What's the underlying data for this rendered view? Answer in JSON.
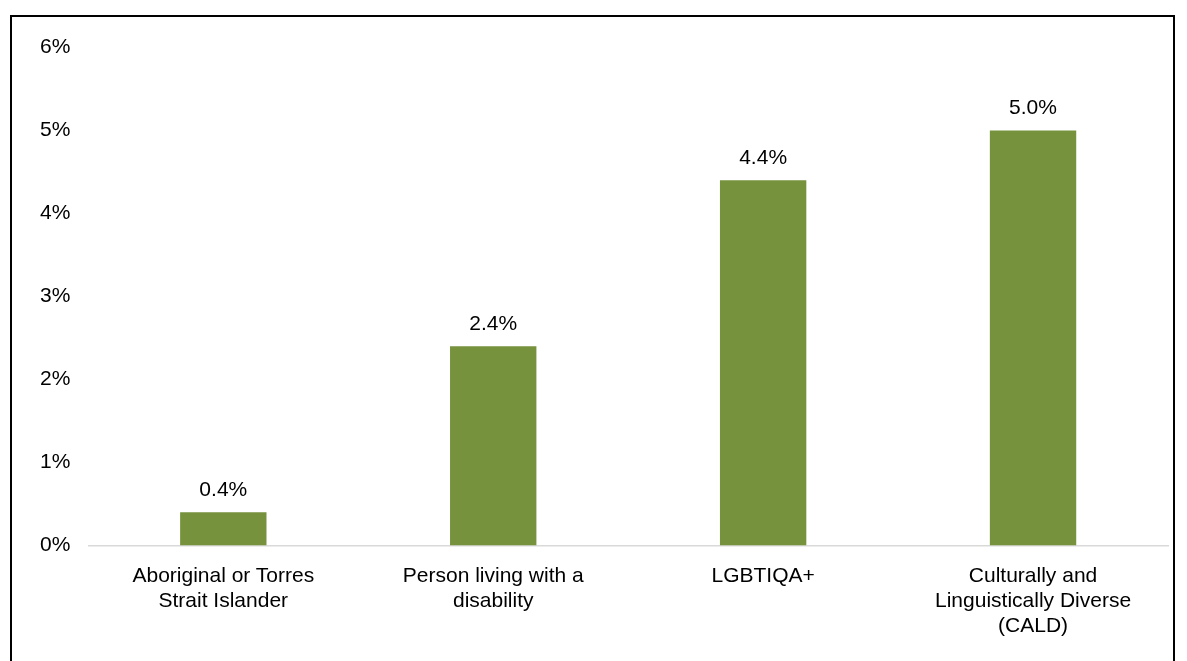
{
  "chart_data": {
    "type": "bar",
    "categories": [
      [
        "Aboriginal or Torres",
        "Strait Islander"
      ],
      [
        "Person living with a",
        "disability"
      ],
      "LGBTIQA+",
      [
        "Culturally and",
        "Linguistically Diverse",
        "(CALD)"
      ]
    ],
    "values": [
      0.4,
      2.4,
      4.4,
      5.0
    ],
    "color": "#76923c",
    "value_labels": [
      "0.4%",
      "2.4%",
      "4.4%",
      "5.0%"
    ],
    "ylim": [
      0,
      6
    ],
    "yticks": [
      {
        "value": 0,
        "label": "0%"
      },
      {
        "value": 1,
        "label": "1%"
      },
      {
        "value": 2,
        "label": "2%"
      },
      {
        "value": 3,
        "label": "3%"
      },
      {
        "value": 4,
        "label": "4%"
      },
      {
        "value": 5,
        "label": "5%"
      },
      {
        "value": 6,
        "label": "6%"
      }
    ],
    "grid": false,
    "legend": false
  }
}
